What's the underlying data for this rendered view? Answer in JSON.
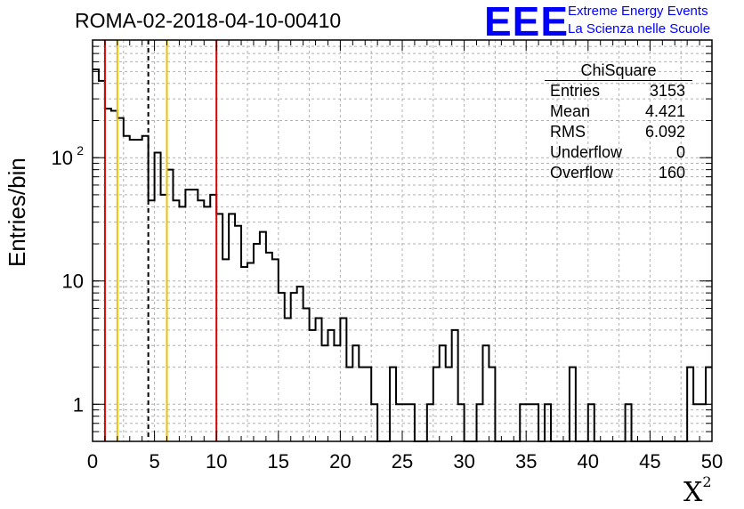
{
  "title": "ROMA-02-2018-04-10-00410",
  "logo": {
    "text": "EEE",
    "line1": "Extreme Energy Events",
    "line2": "La Scienza nelle Scuole",
    "color": "#0000ff"
  },
  "stats": {
    "title": "ChiSquare",
    "rows": [
      {
        "label": "Entries",
        "value": "3153"
      },
      {
        "label": "Mean",
        "value": "4.421"
      },
      {
        "label": "RMS",
        "value": "6.092"
      },
      {
        "label": "Underflow",
        "value": "0"
      },
      {
        "label": "Overflow",
        "value": "160"
      }
    ]
  },
  "chart_data": {
    "type": "histogram",
    "xlabel": "X",
    "xlabel_sup": "2",
    "ylabel": "Entries/bin",
    "xlim": [
      0,
      50
    ],
    "ylim": [
      0.5,
      900
    ],
    "log_y": true,
    "grid": true,
    "bin_width": 0.5,
    "x_ticks": [
      "0",
      "5",
      "10",
      "15",
      "20",
      "25",
      "30",
      "35",
      "40",
      "45",
      "50"
    ],
    "y_ticks": [
      {
        "value": 1,
        "label": "1"
      },
      {
        "value": 10,
        "label": "10"
      },
      {
        "value": 100,
        "label": "10",
        "sup": "2"
      }
    ],
    "counts": [
      520,
      420,
      250,
      240,
      210,
      150,
      140,
      140,
      150,
      45,
      110,
      50,
      80,
      45,
      40,
      55,
      55,
      45,
      40,
      50,
      35,
      15,
      35,
      28,
      13,
      14,
      20,
      25,
      17,
      15,
      8,
      5,
      8,
      9,
      6,
      4,
      5,
      3,
      4,
      3,
      5,
      2,
      3,
      2,
      2,
      1,
      0.5,
      0.5,
      2,
      1,
      1,
      1,
      0.5,
      0.5,
      1,
      2,
      3,
      2,
      4,
      1,
      0.5,
      0.5,
      1,
      3,
      2,
      0.5,
      0.5,
      0.5,
      0.5,
      1,
      1,
      1,
      0.5,
      1,
      0.5,
      0.5,
      0.5,
      2,
      0.5,
      0.5,
      1,
      0.5,
      0.5,
      0.5,
      0.5,
      0.5,
      1,
      0.5,
      0.5,
      0.5,
      0.5,
      0.5,
      0.5,
      0.5,
      0.5,
      0.5,
      2,
      1,
      1,
      2
    ],
    "vertical_lines": [
      {
        "x": 1,
        "color": "#e00000",
        "style": "solid"
      },
      {
        "x": 2,
        "color": "#f0c000",
        "style": "solid"
      },
      {
        "x": 4.5,
        "color": "#000000",
        "style": "dashed"
      },
      {
        "x": 6,
        "color": "#f0c000",
        "style": "solid"
      },
      {
        "x": 10,
        "color": "#e00000",
        "style": "solid"
      }
    ]
  }
}
